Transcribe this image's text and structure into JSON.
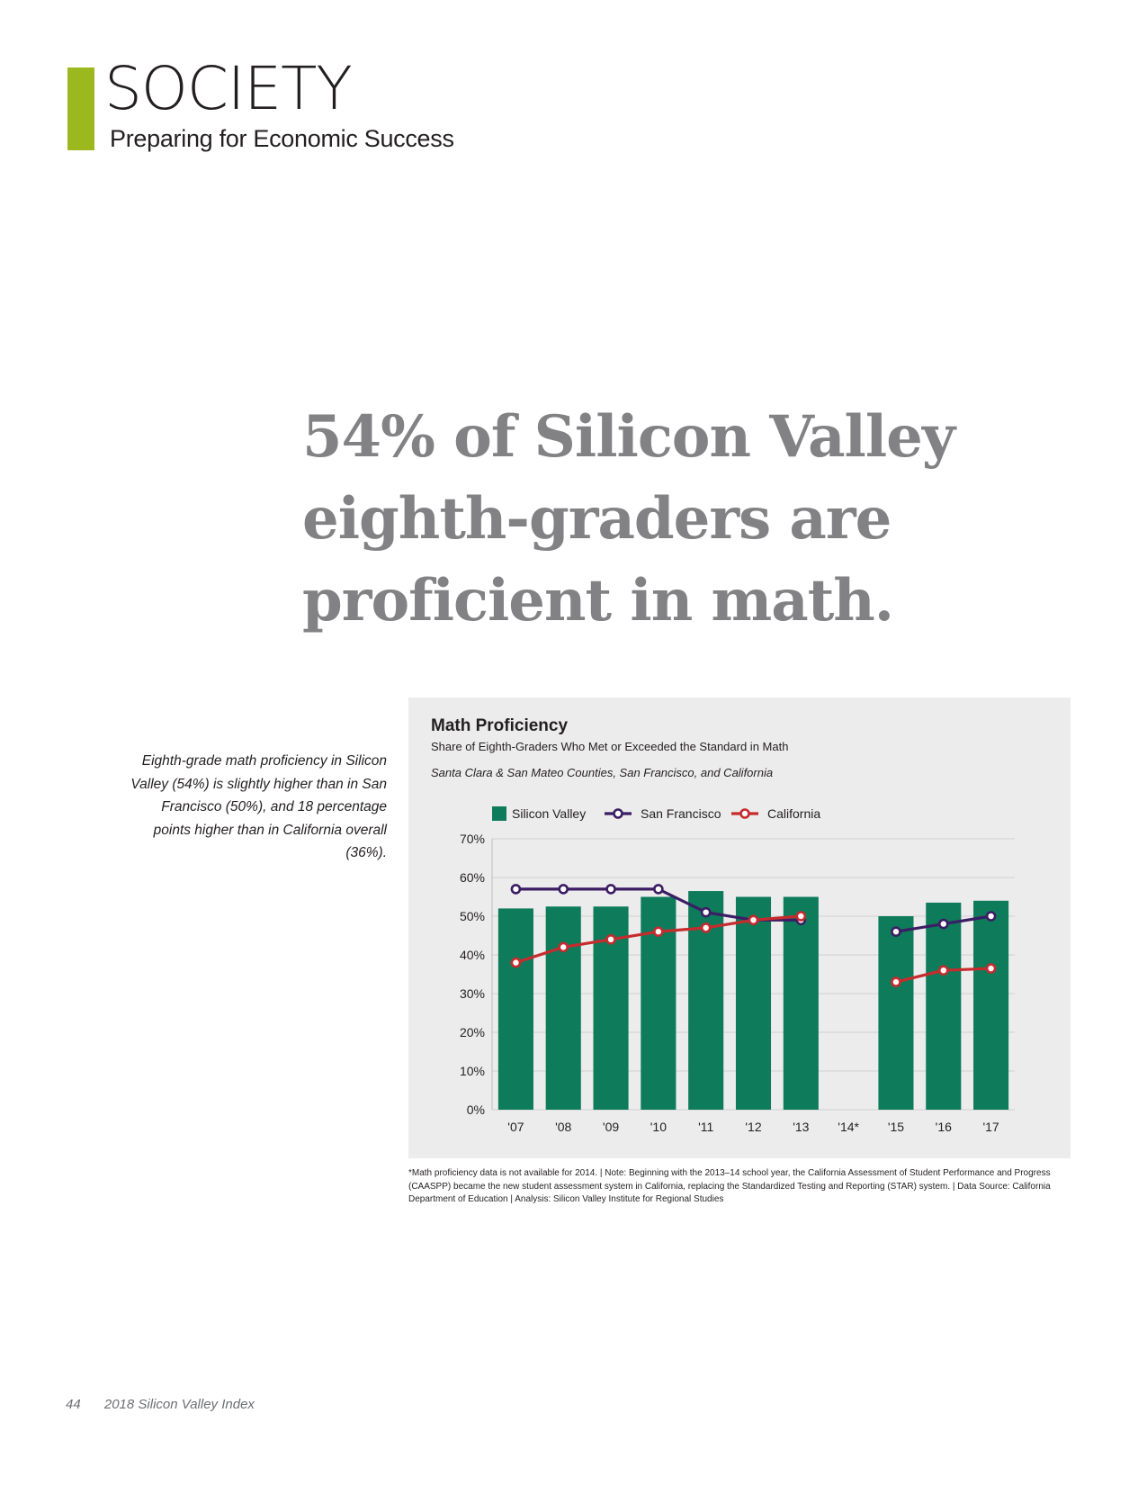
{
  "section": {
    "title": "SOCIETY",
    "subtitle": "Preparing for Economic Success",
    "accent_color": "#9bb91f"
  },
  "headline": {
    "lines": [
      "54% of Silicon Valley",
      "eighth-graders are",
      "proficient in math."
    ]
  },
  "sidenote": "Eighth-grade math proficiency in Silicon Valley (54%) is slightly higher than in San Francisco (50%), and 18 percentage points higher than in California overall (36%).",
  "footnote": "*Math proficiency data is not available for 2014. | Note: Beginning with the 2013–14 school year, the California Assessment of Student Performance and Progress (CAASPP) became the new student assessment system in California, replacing the Standardized Testing and Reporting (STAR) system. | Data Source: California Department of Education | Analysis: Silicon Valley Institute for Regional Studies",
  "footer": {
    "page_number": "44",
    "publication": "2018 Silicon Valley Index"
  },
  "chart_data": {
    "type": "bar",
    "title": "Math Proficiency",
    "subtitle": "Share of Eighth-Graders Who Met or Exceeded the Standard in Math",
    "region": "Santa Clara & San Mateo Counties, San Francisco, and California",
    "categories": [
      "'07",
      "'08",
      "'09",
      "'10",
      "'11",
      "'12",
      "'13",
      "'14*",
      "'15",
      "'16",
      "'17"
    ],
    "ylim": [
      0,
      70
    ],
    "yticks": [
      "0%",
      "10%",
      "20%",
      "30%",
      "40%",
      "50%",
      "60%",
      "70%"
    ],
    "grid": true,
    "legend_position": "top",
    "series": [
      {
        "name": "Silicon Valley",
        "kind": "bar",
        "color": "#0e7b5b",
        "values": [
          52,
          52.5,
          52.5,
          55,
          56.5,
          55,
          55,
          null,
          50,
          53.5,
          54
        ]
      },
      {
        "name": "San Francisco",
        "kind": "line",
        "color": "#3b1d63",
        "values": [
          57,
          57,
          57,
          57,
          51,
          49,
          49,
          null,
          46,
          48,
          50
        ]
      },
      {
        "name": "California",
        "kind": "line",
        "color": "#c72b2d",
        "values": [
          38,
          42,
          44,
          46,
          47,
          49,
          50,
          null,
          33,
          36,
          36.5
        ]
      }
    ]
  }
}
